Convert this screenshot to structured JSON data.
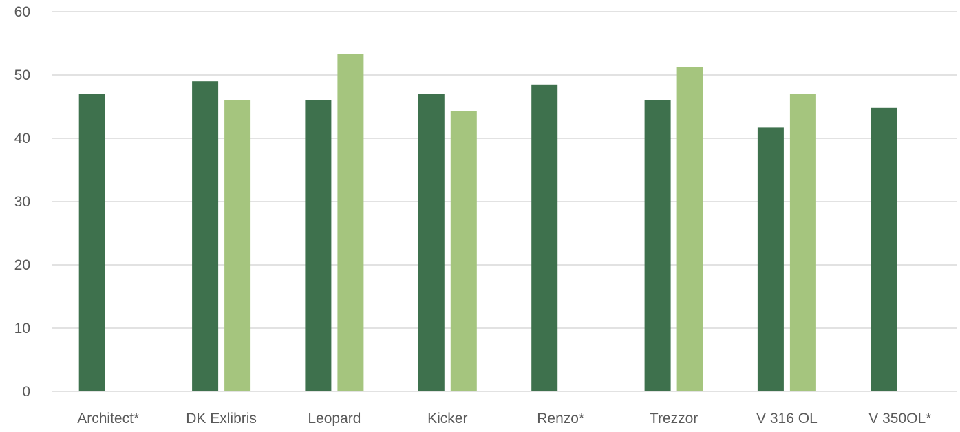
{
  "chart_data": {
    "type": "bar",
    "categories": [
      "Architect*",
      "DK Exlibris",
      "Leopard",
      "Kicker",
      "Renzo*",
      "Trezzor",
      "V 316 OL",
      "V 350OL*"
    ],
    "series": [
      {
        "color": "#3e714d",
        "values": [
          47,
          49,
          46,
          47,
          48.5,
          46,
          41.7,
          44.8
        ]
      },
      {
        "color": "#a5c57e",
        "values": [
          null,
          46,
          53.3,
          44.3,
          null,
          51.2,
          47,
          null
        ]
      }
    ],
    "ylim": [
      0,
      60
    ],
    "yticks": [
      "0",
      "10",
      "20",
      "30",
      "40",
      "50",
      "60"
    ],
    "grid": true,
    "legend": "none"
  }
}
